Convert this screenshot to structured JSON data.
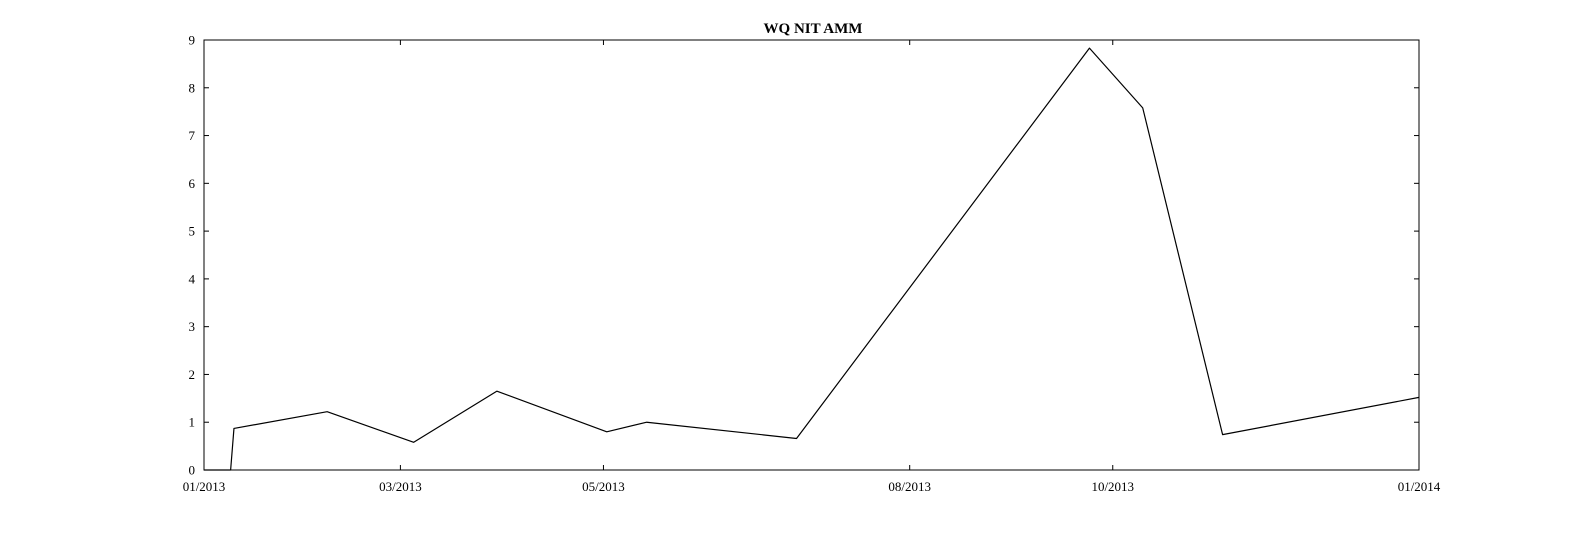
{
  "chart_data": {
    "type": "line",
    "title": "WQ NIT AMM",
    "xlabel": "",
    "ylabel": "",
    "x_range": [
      "2013-01-01",
      "2014-01-01"
    ],
    "ylim": [
      0,
      9
    ],
    "y_ticks": [
      0,
      1,
      2,
      3,
      4,
      5,
      6,
      7,
      8,
      9
    ],
    "x_ticks": [
      {
        "date": "2013-01-01",
        "label": "01/2013"
      },
      {
        "date": "2013-03-01",
        "label": "03/2013"
      },
      {
        "date": "2013-05-01",
        "label": "05/2013"
      },
      {
        "date": "2013-08-01",
        "label": "08/2013"
      },
      {
        "date": "2013-10-01",
        "label": "10/2013"
      },
      {
        "date": "2014-01-01",
        "label": "01/2014"
      }
    ],
    "grid": false,
    "series": [
      {
        "color": "#000000",
        "points": [
          {
            "x": "2013-01-01",
            "y": 0
          },
          {
            "x": "2013-01-09",
            "y": 0
          },
          {
            "x": "2013-01-10",
            "y": 0.87
          },
          {
            "x": "2013-02-07",
            "y": 1.22
          },
          {
            "x": "2013-03-05",
            "y": 0.58
          },
          {
            "x": "2013-03-30",
            "y": 1.65
          },
          {
            "x": "2013-05-02",
            "y": 0.8
          },
          {
            "x": "2013-05-14",
            "y": 1.0
          },
          {
            "x": "2013-06-28",
            "y": 0.66
          },
          {
            "x": "2013-09-24",
            "y": 8.83
          },
          {
            "x": "2013-10-10",
            "y": 7.58
          },
          {
            "x": "2013-11-03",
            "y": 0.74
          },
          {
            "x": "2014-01-01",
            "y": 1.52
          }
        ]
      }
    ]
  }
}
